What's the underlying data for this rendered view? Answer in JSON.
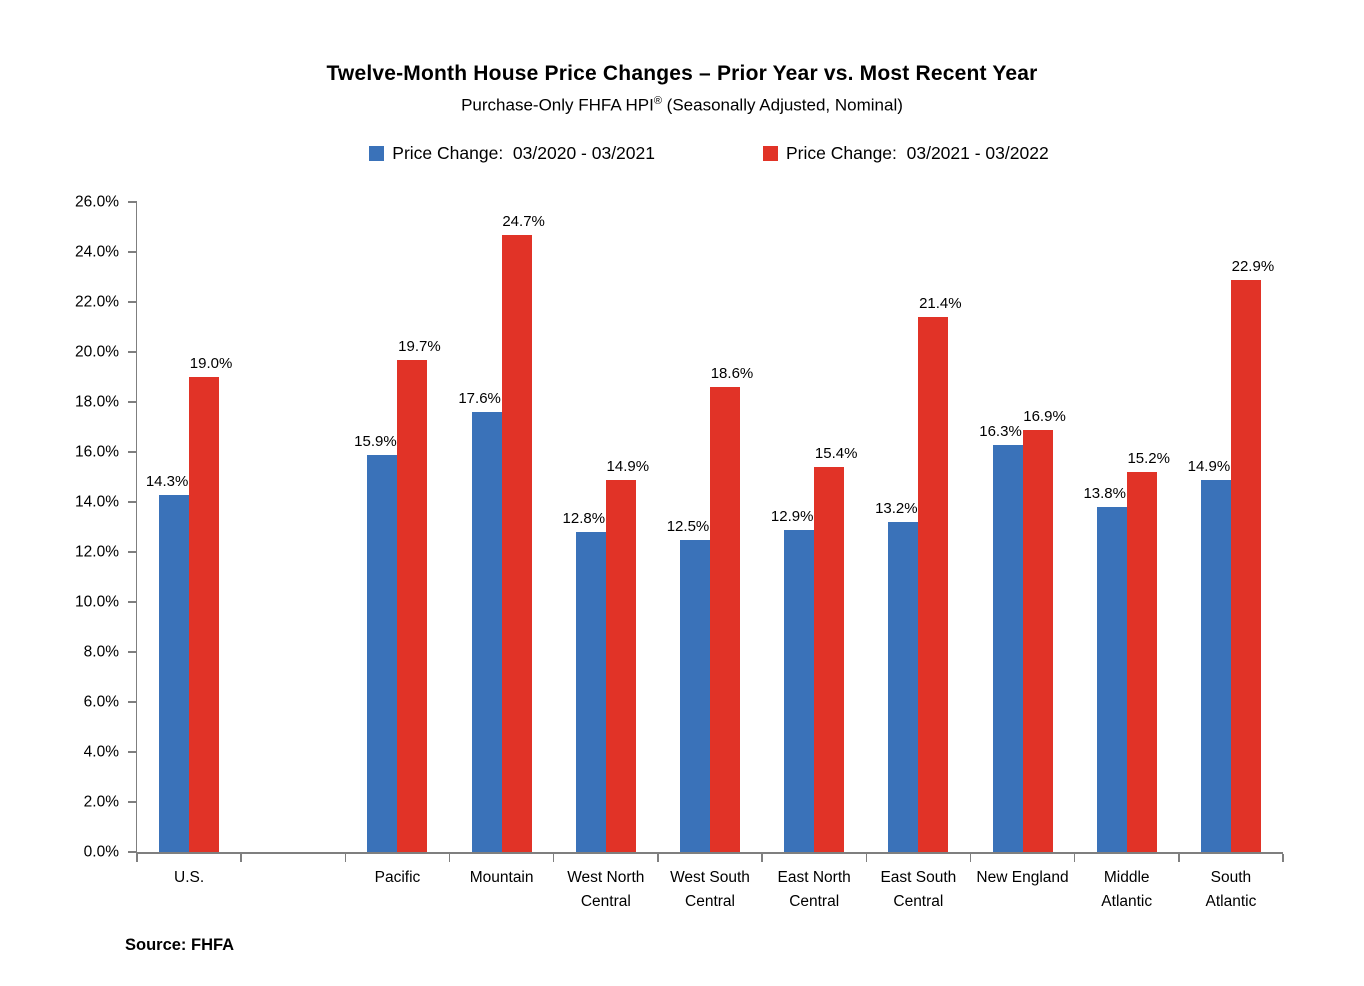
{
  "title": "Twelve-Month House Price Changes – Prior Year vs. Most Recent Year",
  "subtitle": {
    "prefix": "Purchase-Only FHFA HPI",
    "registered_mark": "®",
    "suffix": " (Seasonally Adjusted, Nominal)"
  },
  "legend": {
    "items": [
      {
        "label": "Price Change:  03/2020 - 03/2021",
        "color": "#3A72B9"
      },
      {
        "label": "Price Change:  03/2021 - 03/2022",
        "color": "#E13327"
      }
    ]
  },
  "source": "Source: FHFA",
  "colors": {
    "series1_blue": "#3A72B9",
    "series2_red": "#E13327",
    "axis_gray": "#7f7f7f"
  },
  "chart_data": {
    "type": "bar",
    "title": "Twelve-Month House Price Changes – Prior Year vs. Most Recent Year",
    "subtitle": "Purchase-Only FHFA HPI® (Seasonally Adjusted, Nominal)",
    "categories": [
      "U.S.",
      "Pacific",
      "Mountain",
      "West North\nCentral",
      "West South\nCentral",
      "East North\nCentral",
      "East South\nCentral",
      "New England",
      "Middle\nAtlantic",
      "South\nAtlantic"
    ],
    "category_slots": [
      0,
      2,
      3,
      4,
      5,
      6,
      7,
      8,
      9,
      10
    ],
    "total_slots": 11,
    "series": [
      {
        "name": "Price Change:  03/2020 - 03/2021",
        "color": "#3A72B9",
        "values": [
          14.3,
          15.9,
          17.6,
          12.8,
          12.5,
          12.9,
          13.2,
          16.3,
          13.8,
          14.9
        ]
      },
      {
        "name": "Price Change:  03/2021 - 03/2022",
        "color": "#E13327",
        "values": [
          19.0,
          19.7,
          24.7,
          14.9,
          18.6,
          15.4,
          21.4,
          16.9,
          15.2,
          22.9
        ]
      }
    ],
    "xlabel": "",
    "ylabel": "",
    "ylim": [
      0,
      26
    ],
    "ytick_step": 2,
    "ytick_format": "percent_one_decimal",
    "data_labels": true,
    "grid": false,
    "legend_position": "top"
  }
}
